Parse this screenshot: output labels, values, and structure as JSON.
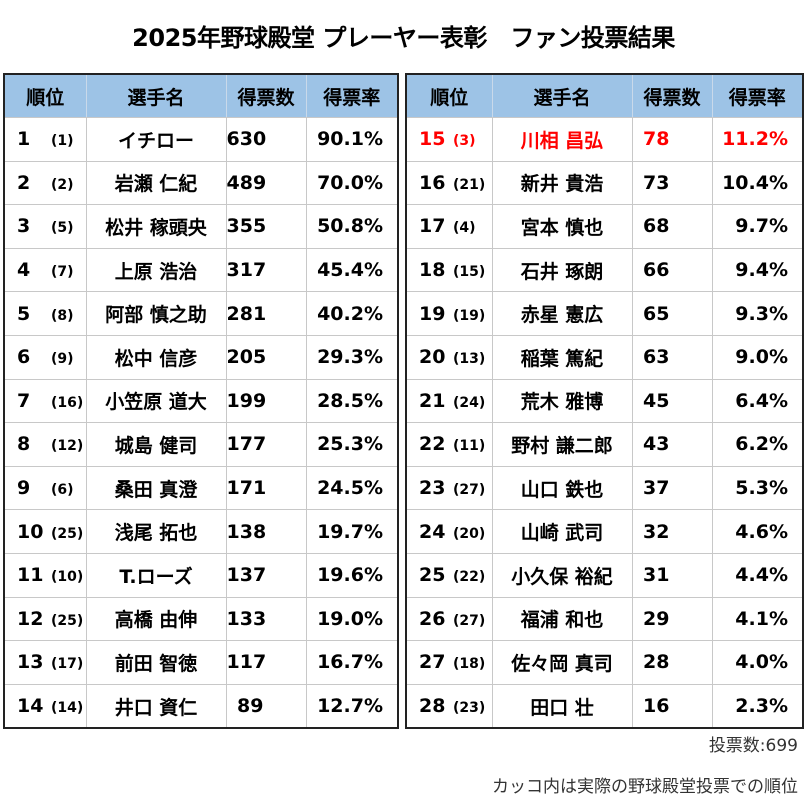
{
  "title": "2025年野球殿堂 プレーヤー表彰　ファン投票結果",
  "headers": {
    "rank": "順位",
    "name": "選手名",
    "votes": "得票数",
    "rate": "得票率"
  },
  "highlight_color": "#ff0000",
  "header_color": "#9dc3e6",
  "left_table": [
    {
      "rank": "1",
      "actual_rank": "(1)",
      "name": "イチロー",
      "votes": "630",
      "rate": "90.1%"
    },
    {
      "rank": "2",
      "actual_rank": "(2)",
      "name": "岩瀬 仁紀",
      "votes": "489",
      "rate": "70.0%"
    },
    {
      "rank": "3",
      "actual_rank": "(5)",
      "name": "松井 稼頭央",
      "votes": "355",
      "rate": "50.8%"
    },
    {
      "rank": "4",
      "actual_rank": "(7)",
      "name": "上原 浩治",
      "votes": "317",
      "rate": "45.4%"
    },
    {
      "rank": "5",
      "actual_rank": "(8)",
      "name": "阿部 慎之助",
      "votes": "281",
      "rate": "40.2%"
    },
    {
      "rank": "6",
      "actual_rank": "(9)",
      "name": "松中 信彦",
      "votes": "205",
      "rate": "29.3%"
    },
    {
      "rank": "7",
      "actual_rank": "(16)",
      "name": "小笠原 道大",
      "votes": "199",
      "rate": "28.5%"
    },
    {
      "rank": "8",
      "actual_rank": "(12)",
      "name": "城島 健司",
      "votes": "177",
      "rate": "25.3%"
    },
    {
      "rank": "9",
      "actual_rank": "(6)",
      "name": "桑田 真澄",
      "votes": "171",
      "rate": "24.5%"
    },
    {
      "rank": "10",
      "actual_rank": "(25)",
      "name": "浅尾 拓也",
      "votes": "138",
      "rate": "19.7%"
    },
    {
      "rank": "11",
      "actual_rank": "(10)",
      "name": "T.ローズ",
      "votes": "137",
      "rate": "19.6%"
    },
    {
      "rank": "12",
      "actual_rank": "(25)",
      "name": "高橋 由伸",
      "votes": "133",
      "rate": "19.0%"
    },
    {
      "rank": "13",
      "actual_rank": "(17)",
      "name": "前田 智徳",
      "votes": "117",
      "rate": "16.7%"
    },
    {
      "rank": "14",
      "actual_rank": "(14)",
      "name": "井口 資仁",
      "votes": "89",
      "rate": "12.7%"
    }
  ],
  "right_table": [
    {
      "rank": "15",
      "actual_rank": "(3)",
      "name": "川相 昌弘",
      "votes": "78",
      "rate": "11.2%",
      "highlight": true
    },
    {
      "rank": "16",
      "actual_rank": "(21)",
      "name": "新井 貴浩",
      "votes": "73",
      "rate": "10.4%"
    },
    {
      "rank": "17",
      "actual_rank": "(4)",
      "name": "宮本 慎也",
      "votes": "68",
      "rate": "9.7%"
    },
    {
      "rank": "18",
      "actual_rank": "(15)",
      "name": "石井 琢朗",
      "votes": "66",
      "rate": "9.4%"
    },
    {
      "rank": "19",
      "actual_rank": "(19)",
      "name": "赤星 憲広",
      "votes": "65",
      "rate": "9.3%"
    },
    {
      "rank": "20",
      "actual_rank": "(13)",
      "name": "稲葉 篤紀",
      "votes": "63",
      "rate": "9.0%"
    },
    {
      "rank": "21",
      "actual_rank": "(24)",
      "name": "荒木 雅博",
      "votes": "45",
      "rate": "6.4%"
    },
    {
      "rank": "22",
      "actual_rank": "(11)",
      "name": "野村 謙二郎",
      "votes": "43",
      "rate": "6.2%"
    },
    {
      "rank": "23",
      "actual_rank": "(27)",
      "name": "山口 鉄也",
      "votes": "37",
      "rate": "5.3%"
    },
    {
      "rank": "24",
      "actual_rank": "(20)",
      "name": "山崎 武司",
      "votes": "32",
      "rate": "4.6%"
    },
    {
      "rank": "25",
      "actual_rank": "(22)",
      "name": "小久保 裕紀",
      "votes": "31",
      "rate": "4.4%"
    },
    {
      "rank": "26",
      "actual_rank": "(27)",
      "name": "福浦 和也",
      "votes": "29",
      "rate": "4.1%"
    },
    {
      "rank": "27",
      "actual_rank": "(18)",
      "name": "佐々岡 真司",
      "votes": "28",
      "rate": "4.0%"
    },
    {
      "rank": "28",
      "actual_rank": "(23)",
      "name": "田口 壮",
      "votes": "16",
      "rate": "2.3%"
    }
  ],
  "notes": {
    "total_votes": "投票数:699",
    "bracket_note": "カッコ内は実際の野球殿堂投票での順位"
  }
}
